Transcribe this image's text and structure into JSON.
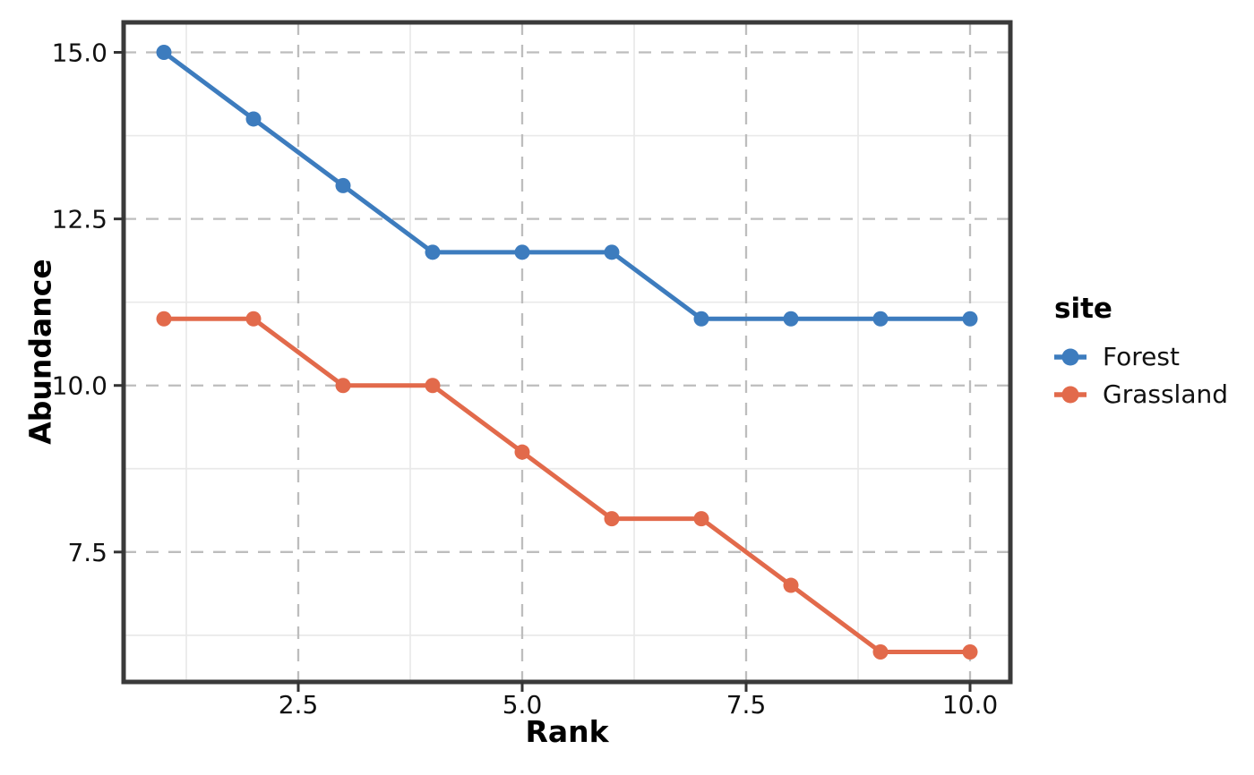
{
  "chart_data": {
    "type": "line",
    "title": "",
    "xlabel": "Rank",
    "ylabel": "Abundance",
    "legend_title": "site",
    "legend_position": "right",
    "x": [
      1,
      2,
      3,
      4,
      5,
      6,
      7,
      8,
      9,
      10
    ],
    "series": [
      {
        "name": "Forest",
        "color": "#3d7cbe",
        "values": [
          15,
          14,
          13,
          12,
          12,
          12,
          11,
          11,
          11,
          11
        ]
      },
      {
        "name": "Grassland",
        "color": "#e26a4b",
        "values": [
          11,
          11,
          10,
          10,
          9,
          8,
          8,
          7,
          6,
          6
        ]
      }
    ],
    "xlim": [
      0.55,
      10.45
    ],
    "ylim": [
      5.55,
      15.45
    ],
    "x_ticks": [
      2.5,
      5,
      7.5,
      10
    ],
    "x_tick_labels": [
      "2.5",
      "5.0",
      "7.5",
      "10.0"
    ],
    "y_ticks": [
      7.5,
      10,
      12.5,
      15
    ],
    "y_tick_labels": [
      "7.5",
      "10.0",
      "12.5",
      "15.0"
    ],
    "x_minor_ticks": [
      1.25,
      3.75,
      6.25,
      8.75
    ],
    "y_minor_ticks": [
      6.25,
      8.75,
      11.25,
      13.75
    ],
    "grid": {
      "major": "dashed",
      "minor": "solid"
    },
    "marker": "circle"
  },
  "style": {
    "background": "#ffffff",
    "panel_border_color": "#3a3a3a",
    "major_grid_color": "#bdbdbd",
    "minor_grid_color": "#e9e9e9",
    "tick_color": "#333333",
    "text_color": "#111111"
  }
}
